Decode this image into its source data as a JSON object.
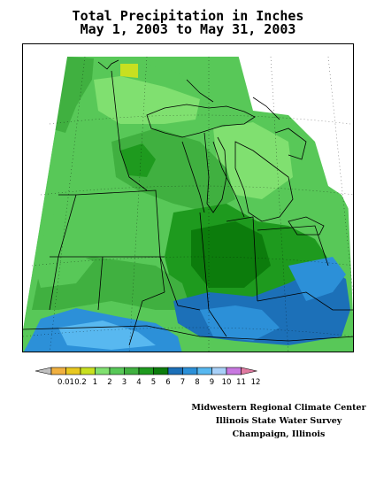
{
  "title": {
    "line1": "Total Precipitation in Inches",
    "line2": "May 1, 2003 to May 31, 2003"
  },
  "legend": {
    "labels": [
      "0.01",
      "0.2",
      "1",
      "2",
      "3",
      "4",
      "5",
      "6",
      "7",
      "8",
      "9",
      "10",
      "11",
      "12"
    ],
    "colors": [
      "#c0c0c0",
      "#f0b040",
      "#e8c820",
      "#c8e020",
      "#80e070",
      "#58c858",
      "#40b040",
      "#1e9a1e",
      "#0c7c0c",
      "#1c70b8",
      "#2c90d8",
      "#58b8f0",
      "#a8d0f8",
      "#c878e0",
      "#e07aa0"
    ]
  },
  "credits": {
    "line1": "Midwestern Regional Climate Center",
    "line2": "Illinois State Water Survey",
    "line3": "Champaign, Illinois"
  },
  "colors": {
    "out_of_domain": "#ffffff",
    "background": "#ffffff",
    "lake": "#ffffff"
  }
}
